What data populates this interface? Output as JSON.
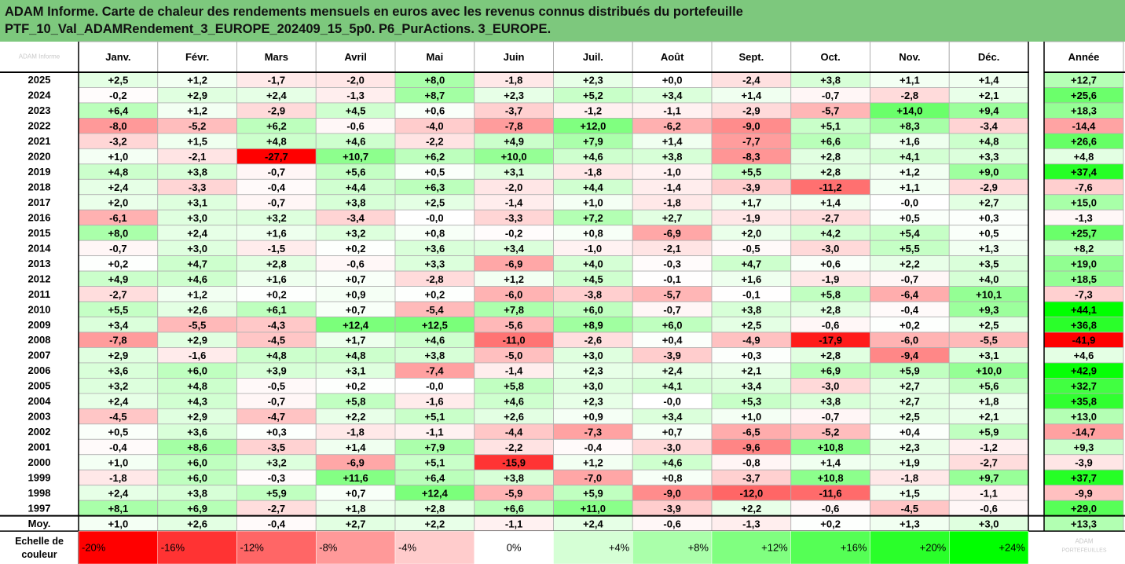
{
  "title": {
    "line1": "ADAM Informe. Carte de chaleur des rendements mensuels en euros avec les revenus connus distribués du portefeuille",
    "line2": "PTF_10_Val_ADAMRendement_3_EUROPE_202409_15_5p0. P6_PurActions. 3_EUROPE."
  },
  "colors": {
    "title_bg": "#7dc87d",
    "max_red": "#ff0000",
    "max_green": "#00ff00",
    "neutral": "#ffffff"
  },
  "chart_data": {
    "type": "heatmap",
    "title": "Carte de chaleur des rendements mensuels en euros",
    "columns": [
      "Janv.",
      "Févr.",
      "Mars",
      "Avril",
      "Mai",
      "Juin",
      "Juil.",
      "Août",
      "Sept.",
      "Oct.",
      "Nov.",
      "Déc."
    ],
    "year_column": "Année",
    "rows": [
      {
        "label": "2025",
        "values": [
          "+2,5",
          "+1,2",
          "-1,7",
          "-2,0",
          "+8,0",
          "-1,8",
          "+2,3",
          "+0,0",
          "-2,4",
          "+3,8",
          "+1,1",
          "+1,4"
        ],
        "year": "+12,7"
      },
      {
        "label": "2024",
        "values": [
          "-0,2",
          "+2,9",
          "+2,4",
          "-1,3",
          "+8,7",
          "+2,3",
          "+5,2",
          "+3,4",
          "+1,4",
          "-0,7",
          "-2,8",
          "+2,1"
        ],
        "year": "+25,6"
      },
      {
        "label": "2023",
        "values": [
          "+6,4",
          "+1,2",
          "-2,9",
          "+4,5",
          "+0,6",
          "-3,7",
          "-1,2",
          "-1,1",
          "-2,9",
          "-5,7",
          "+14,0",
          "+9,4"
        ],
        "year": "+18,3"
      },
      {
        "label": "2022",
        "values": [
          "-8,0",
          "-5,2",
          "+6,2",
          "-0,6",
          "-4,0",
          "-7,8",
          "+12,0",
          "-6,2",
          "-9,0",
          "+5,1",
          "+8,3",
          "-3,4"
        ],
        "year": "-14,4"
      },
      {
        "label": "2021",
        "values": [
          "-3,2",
          "+1,5",
          "+4,8",
          "+4,6",
          "-2,2",
          "+4,9",
          "+7,9",
          "+1,4",
          "-7,7",
          "+6,6",
          "+1,6",
          "+4,8"
        ],
        "year": "+26,6"
      },
      {
        "label": "2020",
        "values": [
          "+1,0",
          "-2,1",
          "-27,7",
          "+10,7",
          "+6,2",
          "+10,0",
          "+4,6",
          "+3,8",
          "-8,3",
          "+2,8",
          "+4,1",
          "+3,3"
        ],
        "year": "+4,8"
      },
      {
        "label": "2019",
        "values": [
          "+4,8",
          "+3,8",
          "-0,7",
          "+5,6",
          "+0,5",
          "+3,1",
          "-1,8",
          "-1,0",
          "+5,5",
          "+2,8",
          "+1,2",
          "+9,0"
        ],
        "year": "+37,4"
      },
      {
        "label": "2018",
        "values": [
          "+2,4",
          "-3,3",
          "-0,4",
          "+4,4",
          "+6,3",
          "-2,0",
          "+4,4",
          "-1,4",
          "-3,9",
          "-11,2",
          "+1,1",
          "-2,9"
        ],
        "year": "-7,6"
      },
      {
        "label": "2017",
        "values": [
          "+2,0",
          "+3,1",
          "-0,7",
          "+3,8",
          "+2,5",
          "-1,4",
          "+1,0",
          "-1,8",
          "+1,7",
          "+1,4",
          "-0,0",
          "+2,7"
        ],
        "year": "+15,0"
      },
      {
        "label": "2016",
        "values": [
          "-6,1",
          "+3,0",
          "+3,2",
          "-3,4",
          "-0,0",
          "-3,3",
          "+7,2",
          "+2,7",
          "-1,9",
          "-2,7",
          "+0,5",
          "+0,3"
        ],
        "year": "-1,3"
      },
      {
        "label": "2015",
        "values": [
          "+8,0",
          "+2,4",
          "+1,6",
          "+3,2",
          "+0,8",
          "-0,2",
          "+0,8",
          "-6,9",
          "+2,0",
          "+4,2",
          "+5,4",
          "+0,5"
        ],
        "year": "+25,7"
      },
      {
        "label": "2014",
        "values": [
          "-0,7",
          "+3,0",
          "-1,5",
          "+0,2",
          "+3,6",
          "+3,4",
          "-1,0",
          "-2,1",
          "-0,5",
          "-3,0",
          "+5,5",
          "+1,3"
        ],
        "year": "+8,2"
      },
      {
        "label": "2013",
        "values": [
          "+0,2",
          "+4,7",
          "+2,8",
          "-0,6",
          "+3,3",
          "-6,9",
          "+4,0",
          "-0,3",
          "+4,7",
          "+0,6",
          "+2,2",
          "+3,5"
        ],
        "year": "+19,0"
      },
      {
        "label": "2012",
        "values": [
          "+4,9",
          "+4,6",
          "+1,6",
          "+0,7",
          "-2,8",
          "+1,2",
          "+4,5",
          "-0,1",
          "+1,6",
          "-1,9",
          "-0,7",
          "+4,0"
        ],
        "year": "+18,5"
      },
      {
        "label": "2011",
        "values": [
          "-2,7",
          "+1,2",
          "+0,2",
          "+0,9",
          "+0,2",
          "-6,0",
          "-3,8",
          "-5,7",
          "-0,1",
          "+5,8",
          "-6,4",
          "+10,1"
        ],
        "year": "-7,3"
      },
      {
        "label": "2010",
        "values": [
          "+5,5",
          "+2,6",
          "+6,1",
          "+0,7",
          "-5,4",
          "+7,8",
          "+6,0",
          "-0,7",
          "+3,8",
          "+2,8",
          "-0,4",
          "+9,3"
        ],
        "year": "+44,1"
      },
      {
        "label": "2009",
        "values": [
          "+3,4",
          "-5,5",
          "-4,3",
          "+12,4",
          "+12,5",
          "-5,6",
          "+8,9",
          "+6,0",
          "+2,5",
          "-0,6",
          "+0,2",
          "+2,5"
        ],
        "year": "+36,8"
      },
      {
        "label": "2008",
        "values": [
          "-7,8",
          "+2,9",
          "-4,5",
          "+1,7",
          "+4,6",
          "-11,0",
          "-2,6",
          "+0,4",
          "-4,9",
          "-17,9",
          "-6,0",
          "-5,5"
        ],
        "year": "-41,9"
      },
      {
        "label": "2007",
        "values": [
          "+2,9",
          "-1,6",
          "+4,8",
          "+4,8",
          "+3,8",
          "-5,0",
          "+3,0",
          "-3,9",
          "+0,3",
          "+2,8",
          "-9,4",
          "+3,1"
        ],
        "year": "+4,6"
      },
      {
        "label": "2006",
        "values": [
          "+3,6",
          "+6,0",
          "+3,9",
          "+3,1",
          "-7,4",
          "-1,4",
          "+2,3",
          "+2,4",
          "+2,1",
          "+6,9",
          "+5,9",
          "+10,0"
        ],
        "year": "+42,9"
      },
      {
        "label": "2005",
        "values": [
          "+3,2",
          "+4,8",
          "-0,5",
          "+0,2",
          "-0,0",
          "+5,8",
          "+3,0",
          "+4,1",
          "+3,4",
          "-3,0",
          "+2,7",
          "+5,6"
        ],
        "year": "+32,7"
      },
      {
        "label": "2004",
        "values": [
          "+2,4",
          "+4,3",
          "-0,7",
          "+5,8",
          "-1,6",
          "+4,6",
          "+2,3",
          "-0,0",
          "+5,3",
          "+3,8",
          "+2,7",
          "+1,8"
        ],
        "year": "+35,8"
      },
      {
        "label": "2003",
        "values": [
          "-4,5",
          "+2,9",
          "-4,7",
          "+2,2",
          "+5,1",
          "+2,6",
          "+0,9",
          "+3,4",
          "+1,0",
          "-0,7",
          "+2,5",
          "+2,1"
        ],
        "year": "+13,0"
      },
      {
        "label": "2002",
        "values": [
          "+0,5",
          "+3,6",
          "+0,3",
          "-1,8",
          "-1,1",
          "-4,4",
          "-7,3",
          "+0,7",
          "-6,5",
          "-5,2",
          "+0,4",
          "+5,9"
        ],
        "year": "-14,7"
      },
      {
        "label": "2001",
        "values": [
          "-0,4",
          "+8,6",
          "-3,5",
          "+1,4",
          "+7,9",
          "-2,2",
          "-0,4",
          "-3,0",
          "-9,6",
          "+10,8",
          "+2,3",
          "-1,2"
        ],
        "year": "+9,3"
      },
      {
        "label": "2000",
        "values": [
          "+1,0",
          "+6,0",
          "+3,2",
          "-6,9",
          "+5,1",
          "-15,9",
          "+1,2",
          "+4,6",
          "-0,8",
          "+1,4",
          "+1,9",
          "-2,7"
        ],
        "year": "-3,9"
      },
      {
        "label": "1999",
        "values": [
          "-1,8",
          "+6,0",
          "-0,3",
          "+11,6",
          "+6,4",
          "+3,8",
          "-7,0",
          "+0,8",
          "-3,7",
          "+10,8",
          "-1,8",
          "+9,7"
        ],
        "year": "+37,7"
      },
      {
        "label": "1998",
        "values": [
          "+2,4",
          "+3,8",
          "+5,9",
          "+0,7",
          "+12,4",
          "-5,9",
          "+5,9",
          "-9,0",
          "-12,0",
          "-11,6",
          "+1,5",
          "-1,1"
        ],
        "year": "-9,9"
      },
      {
        "label": "1997",
        "values": [
          "+8,1",
          "+6,9",
          "-2,7",
          "+1,8",
          "+2,8",
          "+6,6",
          "+11,0",
          "-3,9",
          "+2,2",
          "-0,6",
          "-4,5",
          "-0,6"
        ],
        "year": "+29,0"
      }
    ],
    "average_row": {
      "label": "Moy.",
      "values": [
        "+1,0",
        "+2,6",
        "-0,4",
        "+2,7",
        "+2,2",
        "-1,1",
        "+2,4",
        "-0,6",
        "-1,3",
        "+0,2",
        "+1,3",
        "+3,0"
      ],
      "year": "+13,3"
    },
    "scale": {
      "label_line1": "Echelle de",
      "label_line2": "couleur",
      "items": [
        {
          "label": "-20%",
          "value": -20
        },
        {
          "label": "-16%",
          "value": -16
        },
        {
          "label": "-12%",
          "value": -12
        },
        {
          "label": "-8%",
          "value": -8
        },
        {
          "label": "-4%",
          "value": -4
        },
        {
          "label": "0%",
          "value": 0
        },
        {
          "label": "+4%",
          "value": 4
        },
        {
          "label": "+8%",
          "value": 8
        },
        {
          "label": "+12%",
          "value": 12
        },
        {
          "label": "+16%",
          "value": 16
        },
        {
          "label": "+20%",
          "value": 20
        },
        {
          "label": "+24%",
          "value": 24
        }
      ]
    },
    "monthly_color_range": [
      -20,
      24
    ],
    "year_color_range": [
      -40,
      44
    ]
  },
  "watermark": {
    "top_left": "ADAM Informe",
    "bottom_right_1": "ADAM",
    "bottom_right_2": "PORTEFEUILLES"
  }
}
